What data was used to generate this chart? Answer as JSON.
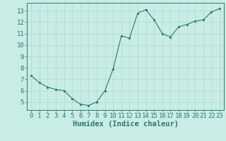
{
  "x": [
    0,
    1,
    2,
    3,
    4,
    5,
    6,
    7,
    8,
    9,
    10,
    11,
    12,
    13,
    14,
    15,
    16,
    17,
    18,
    19,
    20,
    21,
    22,
    23
  ],
  "y": [
    7.3,
    6.7,
    6.3,
    6.1,
    6.0,
    5.3,
    4.8,
    4.7,
    5.0,
    6.0,
    7.9,
    10.8,
    10.6,
    12.8,
    13.1,
    12.2,
    11.0,
    10.7,
    11.6,
    11.8,
    12.1,
    12.2,
    12.9,
    13.2
  ],
  "xlabel": "Humidex (Indice chaleur)",
  "ylim": [
    4.3,
    13.7
  ],
  "xlim": [
    -0.5,
    23.5
  ],
  "yticks": [
    5,
    6,
    7,
    8,
    9,
    10,
    11,
    12,
    13
  ],
  "xticks": [
    0,
    1,
    2,
    3,
    4,
    5,
    6,
    7,
    8,
    9,
    10,
    11,
    12,
    13,
    14,
    15,
    16,
    17,
    18,
    19,
    20,
    21,
    22,
    23
  ],
  "line_color": "#2d7a6b",
  "marker_color": "#2d7a6b",
  "bg_color": "#c8ece6",
  "grid_color": "#b0d8d0",
  "axis_color": "#2d7a6b",
  "tick_color": "#2d7a6b",
  "label_color": "#2d7a6b",
  "font_size_axis": 6.5,
  "font_size_label": 7.5
}
